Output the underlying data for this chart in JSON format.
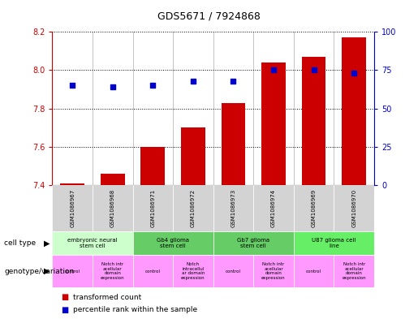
{
  "title": "GDS5671 / 7924868",
  "samples": [
    "GSM1086967",
    "GSM1086968",
    "GSM1086971",
    "GSM1086972",
    "GSM1086973",
    "GSM1086974",
    "GSM1086969",
    "GSM1086970"
  ],
  "transformed_count": [
    7.41,
    7.46,
    7.6,
    7.7,
    7.83,
    8.04,
    8.07,
    8.17
  ],
  "percentile_rank": [
    65,
    64,
    65,
    68,
    68,
    75,
    75,
    73
  ],
  "ylim_left": [
    7.4,
    8.2
  ],
  "ylim_right": [
    0,
    100
  ],
  "yticks_left": [
    7.4,
    7.6,
    7.8,
    8.0,
    8.2
  ],
  "yticks_right": [
    0,
    25,
    50,
    75,
    100
  ],
  "bar_color": "#cc0000",
  "dot_color": "#0000cc",
  "bar_bottom": 7.4,
  "cell_type_groups": [
    {
      "label": "embryonic neural\nstem cell",
      "start": 0,
      "end": 2,
      "color": "#ccffcc"
    },
    {
      "label": "Gb4 glioma\nstem cell",
      "start": 2,
      "end": 4,
      "color": "#66cc66"
    },
    {
      "label": "Gb7 glioma\nstem cell",
      "start": 4,
      "end": 6,
      "color": "#66cc66"
    },
    {
      "label": "U87 glioma cell\nline",
      "start": 6,
      "end": 8,
      "color": "#66ee66"
    }
  ],
  "genotype_groups": [
    {
      "label": "control",
      "start": 0,
      "end": 1
    },
    {
      "label": "Notch intr\nacellular\ndomain\nexpression",
      "start": 1,
      "end": 2
    },
    {
      "label": "control",
      "start": 2,
      "end": 3
    },
    {
      "label": "Notch\nintracellul\nar domain\nexpression",
      "start": 3,
      "end": 4
    },
    {
      "label": "control",
      "start": 4,
      "end": 5
    },
    {
      "label": "Notch intr\nacellular\ndomain\nexpression",
      "start": 5,
      "end": 6
    },
    {
      "label": "control",
      "start": 6,
      "end": 7
    },
    {
      "label": "Notch intr\nacellular\ndomain\nexpression",
      "start": 7,
      "end": 8
    }
  ],
  "bar_color_legend": "#cc0000",
  "dot_color_legend": "#0000cc",
  "label_color_left": "#cc0000",
  "label_color_right": "#0000cc",
  "genotype_color": "#ff99ff"
}
